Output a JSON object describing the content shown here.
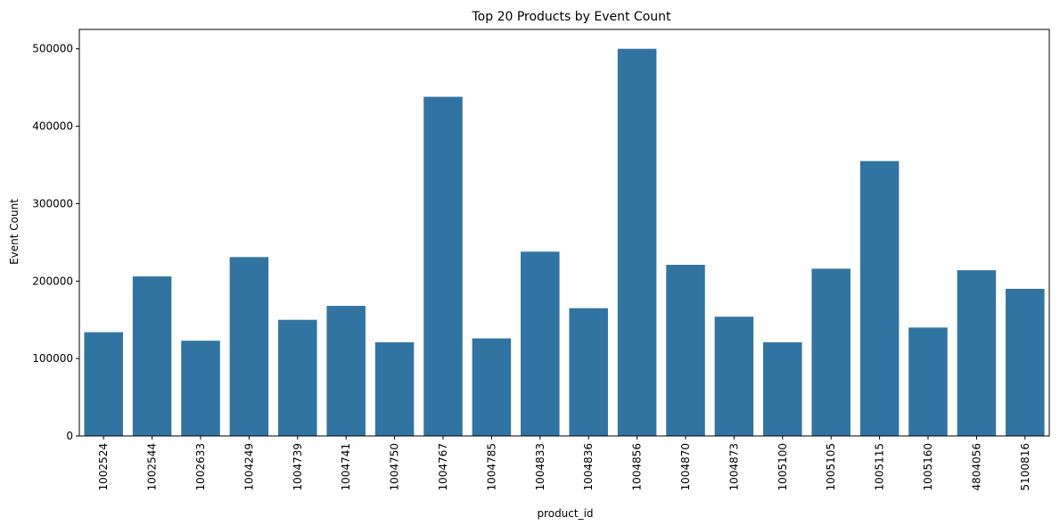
{
  "chart_data": {
    "type": "bar",
    "title": "Top 20 Products by Event Count",
    "xlabel": "product_id",
    "ylabel": "Event Count",
    "categories": [
      "1002524",
      "1002544",
      "1002633",
      "1004249",
      "1004739",
      "1004741",
      "1004750",
      "1004767",
      "1004785",
      "1004833",
      "1004836",
      "1004856",
      "1004870",
      "1004873",
      "1005100",
      "1005105",
      "1005115",
      "1005160",
      "4804056",
      "5100816"
    ],
    "values": [
      134000,
      206000,
      123000,
      231000,
      150000,
      168000,
      121000,
      438000,
      126000,
      238000,
      165000,
      500000,
      221000,
      154000,
      121000,
      216000,
      355000,
      140000,
      214000,
      190000
    ],
    "ylim": [
      0,
      525000
    ],
    "yticks": [
      0,
      100000,
      200000,
      300000,
      400000,
      500000
    ],
    "bar_color": "#3274a1",
    "grid": false,
    "legend": "none"
  }
}
